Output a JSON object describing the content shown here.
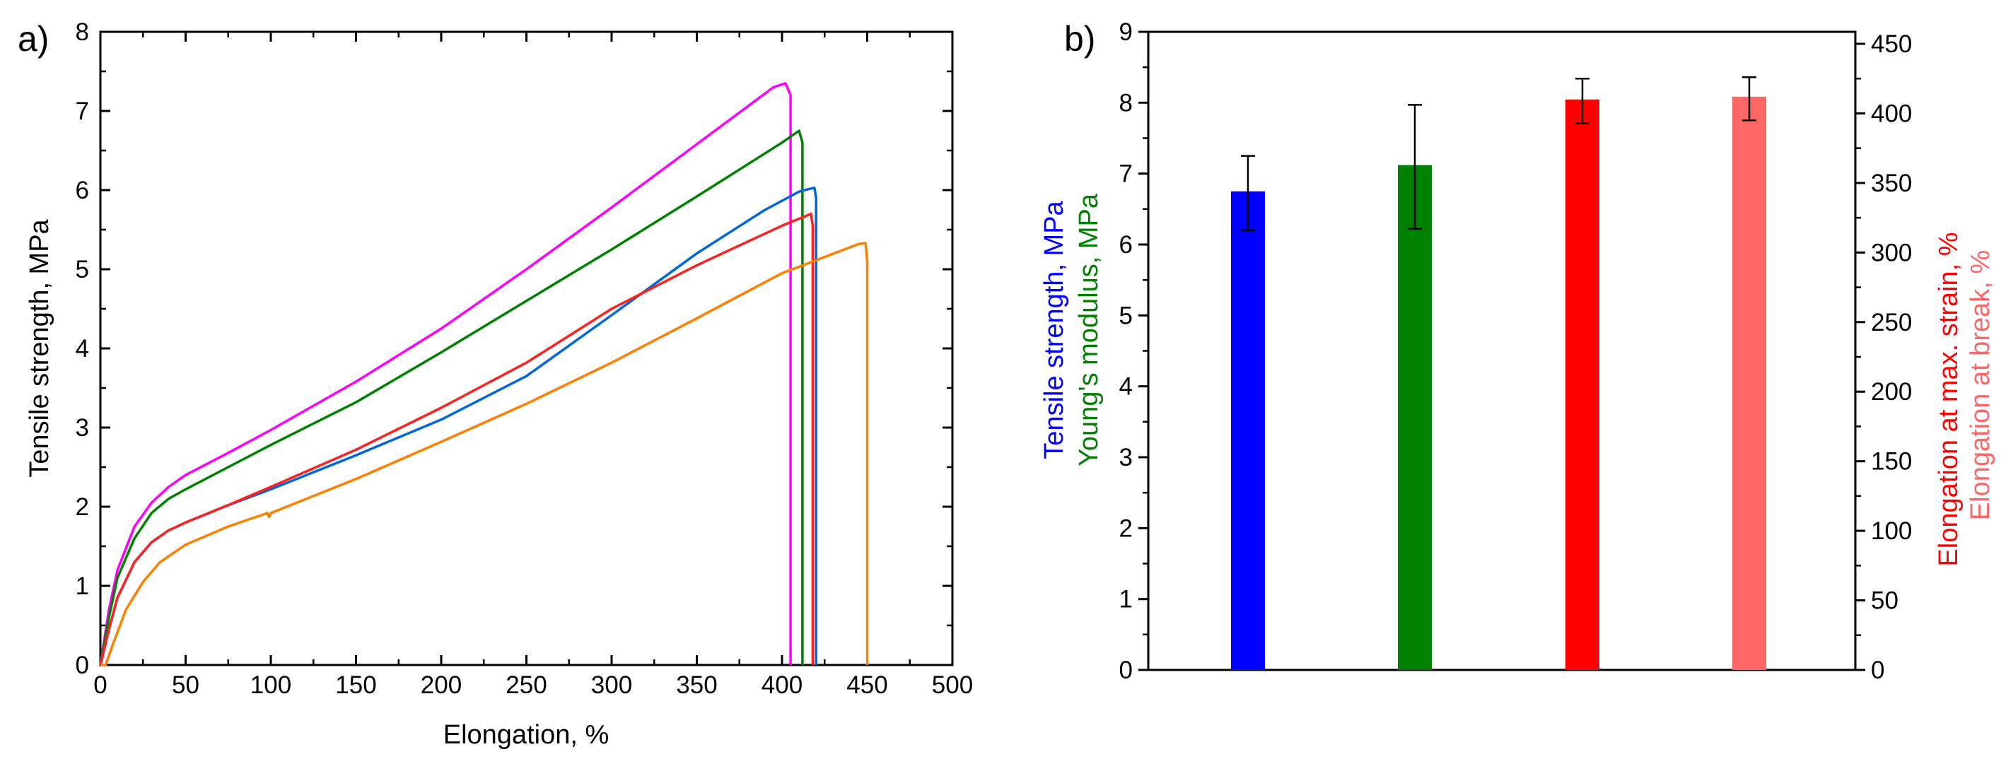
{
  "chart_data": [
    {
      "type": "line",
      "panel_label": "a)",
      "xlabel": "Elongation, %",
      "ylabel": "Tensile strength, MPa",
      "xlim": [
        0,
        500
      ],
      "ylim": [
        0,
        8
      ],
      "x_ticks": [
        "0",
        "50",
        "100",
        "150",
        "200",
        "250",
        "300",
        "350",
        "400",
        "450",
        "500"
      ],
      "y_ticks": [
        "0",
        "1",
        "2",
        "3",
        "4",
        "5",
        "6",
        "7",
        "8"
      ],
      "series": [
        {
          "name": "magenta",
          "color": "#ff00ff",
          "points": [
            [
              0,
              0
            ],
            [
              5,
              0.7
            ],
            [
              10,
              1.2
            ],
            [
              20,
              1.75
            ],
            [
              30,
              2.05
            ],
            [
              40,
              2.25
            ],
            [
              50,
              2.4
            ],
            [
              75,
              2.68
            ],
            [
              100,
              2.97
            ],
            [
              150,
              3.58
            ],
            [
              200,
              4.25
            ],
            [
              250,
              5.0
            ],
            [
              300,
              5.78
            ],
            [
              350,
              6.58
            ],
            [
              395,
              7.3
            ],
            [
              402,
              7.35
            ],
            [
              405,
              7.2
            ],
            [
              405,
              0
            ]
          ]
        },
        {
          "name": "green",
          "color": "#008000",
          "points": [
            [
              0,
              0
            ],
            [
              5,
              0.6
            ],
            [
              10,
              1.1
            ],
            [
              20,
              1.6
            ],
            [
              30,
              1.92
            ],
            [
              40,
              2.1
            ],
            [
              50,
              2.22
            ],
            [
              75,
              2.5
            ],
            [
              100,
              2.78
            ],
            [
              150,
              3.32
            ],
            [
              200,
              3.95
            ],
            [
              250,
              4.6
            ],
            [
              300,
              5.25
            ],
            [
              350,
              5.92
            ],
            [
              400,
              6.6
            ],
            [
              410,
              6.75
            ],
            [
              412,
              6.6
            ],
            [
              412,
              0
            ]
          ]
        },
        {
          "name": "blue",
          "color": "#0066dd",
          "points": [
            [
              0,
              0
            ],
            [
              5,
              0.45
            ],
            [
              10,
              0.85
            ],
            [
              20,
              1.3
            ],
            [
              30,
              1.55
            ],
            [
              40,
              1.7
            ],
            [
              50,
              1.8
            ],
            [
              75,
              2.02
            ],
            [
              100,
              2.22
            ],
            [
              150,
              2.65
            ],
            [
              200,
              3.1
            ],
            [
              250,
              3.65
            ],
            [
              300,
              4.42
            ],
            [
              350,
              5.2
            ],
            [
              390,
              5.75
            ],
            [
              410,
              5.98
            ],
            [
              419,
              6.03
            ],
            [
              420,
              5.9
            ],
            [
              420,
              0
            ]
          ]
        },
        {
          "name": "red",
          "color": "#ff2020",
          "points": [
            [
              0,
              0
            ],
            [
              5,
              0.45
            ],
            [
              10,
              0.85
            ],
            [
              20,
              1.3
            ],
            [
              30,
              1.55
            ],
            [
              40,
              1.7
            ],
            [
              50,
              1.8
            ],
            [
              75,
              2.02
            ],
            [
              100,
              2.25
            ],
            [
              150,
              2.72
            ],
            [
              200,
              3.25
            ],
            [
              250,
              3.82
            ],
            [
              300,
              4.5
            ],
            [
              350,
              5.05
            ],
            [
              400,
              5.55
            ],
            [
              417,
              5.7
            ],
            [
              418,
              5.55
            ],
            [
              418,
              0
            ]
          ]
        },
        {
          "name": "orange",
          "color": "#ff7f00",
          "points": [
            [
              0,
              0
            ],
            [
              3,
              0
            ],
            [
              8,
              0.3
            ],
            [
              15,
              0.7
            ],
            [
              25,
              1.05
            ],
            [
              35,
              1.3
            ],
            [
              50,
              1.52
            ],
            [
              75,
              1.75
            ],
            [
              98,
              1.92
            ],
            [
              99,
              1.87
            ],
            [
              100,
              1.92
            ],
            [
              150,
              2.35
            ],
            [
              200,
              2.82
            ],
            [
              250,
              3.3
            ],
            [
              300,
              3.82
            ],
            [
              350,
              4.38
            ],
            [
              400,
              4.95
            ],
            [
              445,
              5.32
            ],
            [
              449,
              5.33
            ],
            [
              450,
              5.1
            ],
            [
              450,
              0
            ]
          ]
        }
      ]
    },
    {
      "type": "bar",
      "panel_label": "b)",
      "ylabel_left_1": "Tensile strength, MPa",
      "ylabel_left_2": "Young's modulus, MPa",
      "ylabel_right_1": "Elongation at max. strain, %",
      "ylabel_right_2": "Elongation at break, %",
      "ylim_left": [
        0,
        9
      ],
      "ylim_right": [
        0,
        450
      ],
      "left_ticks": [
        "0",
        "1",
        "2",
        "3",
        "4",
        "5",
        "6",
        "7",
        "8",
        "9"
      ],
      "right_ticks": [
        "0",
        "50",
        "100",
        "150",
        "200",
        "250",
        "300",
        "350",
        "400",
        "450"
      ],
      "colors": {
        "tensile": "#0000ff",
        "modulus": "#008000",
        "elong_max": "#ff0000",
        "elong_break": "#ff6666"
      },
      "bars": [
        {
          "name": "Tensile strength",
          "axis": "left",
          "value": 6.75,
          "err_low": 6.2,
          "err_high": 7.25,
          "color": "#0000ff"
        },
        {
          "name": "Young's modulus",
          "axis": "left",
          "value": 7.12,
          "err_low": 6.22,
          "err_high": 7.97,
          "color": "#008000"
        },
        {
          "name": "Elongation at max. strain",
          "axis": "right",
          "value": 410,
          "err_low": 393,
          "err_high": 425,
          "color": "#ff0000"
        },
        {
          "name": "Elongation at break",
          "axis": "right",
          "value": 412,
          "err_low": 395,
          "err_high": 426,
          "color": "#ff6666"
        }
      ]
    }
  ]
}
